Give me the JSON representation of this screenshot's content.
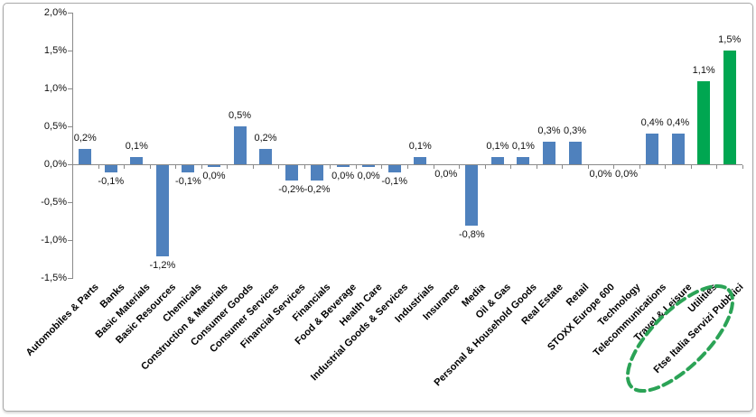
{
  "chart_data": {
    "type": "bar",
    "title": "",
    "categories": [
      "Automobiles & Parts",
      "Banks",
      "Basic Materials",
      "Basic Resources",
      "Chemicals",
      "Construction & Materials",
      "Consumer Goods",
      "Consumer Services",
      "Financial Services",
      "Financials",
      "Food & Beverage",
      "Health Care",
      "Industrial Goods & Services",
      "Industrials",
      "Insurance",
      "Media",
      "Oil & Gas",
      "Personal & Household Goods",
      "Real Estate",
      "Retail",
      "STOXX Europe 600",
      "Technology",
      "Telecommunications",
      "Travel & Leisure",
      "Utilities",
      "Ftse Italia Servizi Pubblici"
    ],
    "values": [
      0.2,
      -0.1,
      0.1,
      -1.2,
      -0.1,
      0.0,
      0.5,
      0.2,
      -0.2,
      -0.2,
      0.0,
      0.0,
      -0.1,
      0.1,
      0.0,
      -0.8,
      0.1,
      0.1,
      0.3,
      0.3,
      0.0,
      0.0,
      0.4,
      0.4,
      1.1,
      1.5
    ],
    "value_labels": [
      "0,2%",
      "-0,1%",
      "0,1%",
      "-1,2%",
      "-0,1%",
      "0,0%",
      "0,5%",
      "0,2%",
      "-0,2%",
      "-0,2%",
      "0,0%",
      "0,0%",
      "-0,1%",
      "0,1%",
      "0,0%",
      "-0,8%",
      "0,1%",
      "0,1%",
      "0,3%",
      "0,3%",
      "0,0%",
      "0,0%",
      "0,4%",
      "0,4%",
      "1,1%",
      "1,5%"
    ],
    "y_tick_labels": [
      "2,0%",
      "1,5%",
      "1,0%",
      "0,5%",
      "0,0%",
      "-0,5%",
      "-1,0%",
      "-1,5%"
    ],
    "ylim": [
      -1.5,
      2.0
    ],
    "ylabel": "",
    "xlabel": "",
    "grid": false,
    "legend": false,
    "bar_color_default": "#4F81BD",
    "bar_color_highlight": "#00A651",
    "highlight_indices": [
      24,
      25
    ],
    "tiny_negative_zero_indices": [
      5,
      10,
      11
    ],
    "no_bar_zero_indices": [
      14,
      20,
      21
    ],
    "annotation": {
      "type": "dashed-ellipse",
      "around": [
        "Utilities",
        "Ftse Italia Servizi Pubblici"
      ],
      "color": "#2BA356"
    }
  },
  "colors": {
    "axis": "#8a8a8a",
    "text": "#111111",
    "frame_border": "#a8a8a8",
    "background": "#ffffff"
  }
}
